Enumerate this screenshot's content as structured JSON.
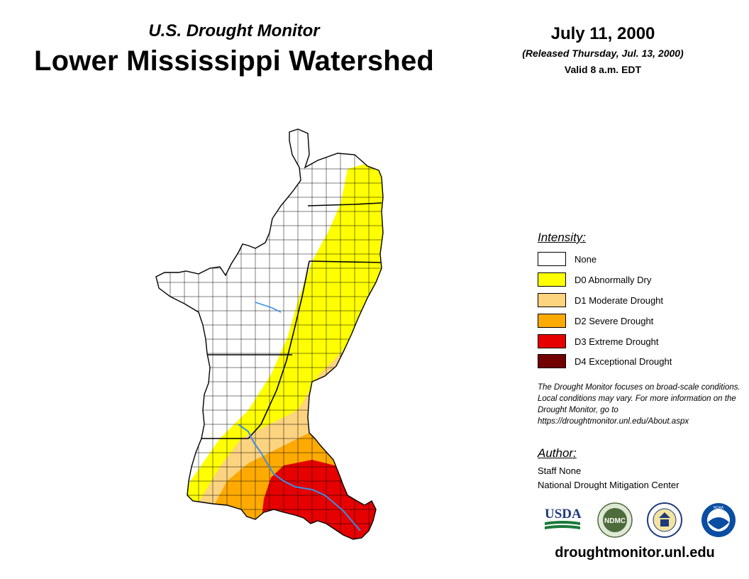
{
  "header": {
    "subtitle": "U.S. Drought Monitor",
    "title": "Lower Mississippi Watershed",
    "date": "July 11, 2000",
    "released": "(Released Thursday, Jul. 13, 2000)",
    "valid": "Valid 8 a.m. EDT"
  },
  "legend": {
    "heading": "Intensity:",
    "items": [
      {
        "label": "None",
        "color": "#ffffff"
      },
      {
        "label": "D0 Abnormally Dry",
        "color": "#ffff00"
      },
      {
        "label": "D1 Moderate Drought",
        "color": "#fcd37f"
      },
      {
        "label": "D2 Severe Drought",
        "color": "#ffaa00"
      },
      {
        "label": "D3 Extreme Drought",
        "color": "#e60000"
      },
      {
        "label": "D4 Exceptional Drought",
        "color": "#730000"
      }
    ]
  },
  "note": "The Drought Monitor focuses on broad-scale conditions. Local conditions may vary. For more information on the Drought Monitor, go to https://droughtmonitor.unl.edu/About.aspx",
  "author": {
    "heading": "Author:",
    "name": "Staff None",
    "organization": "National Drought Mitigation Center"
  },
  "logos": {
    "usda": "USDA",
    "ndmc": "NDMC",
    "noaa": "NOAA"
  },
  "website": "droughtmonitor.unl.edu",
  "colors": {
    "river": "#3a8fe8",
    "boundary": "#000000"
  }
}
